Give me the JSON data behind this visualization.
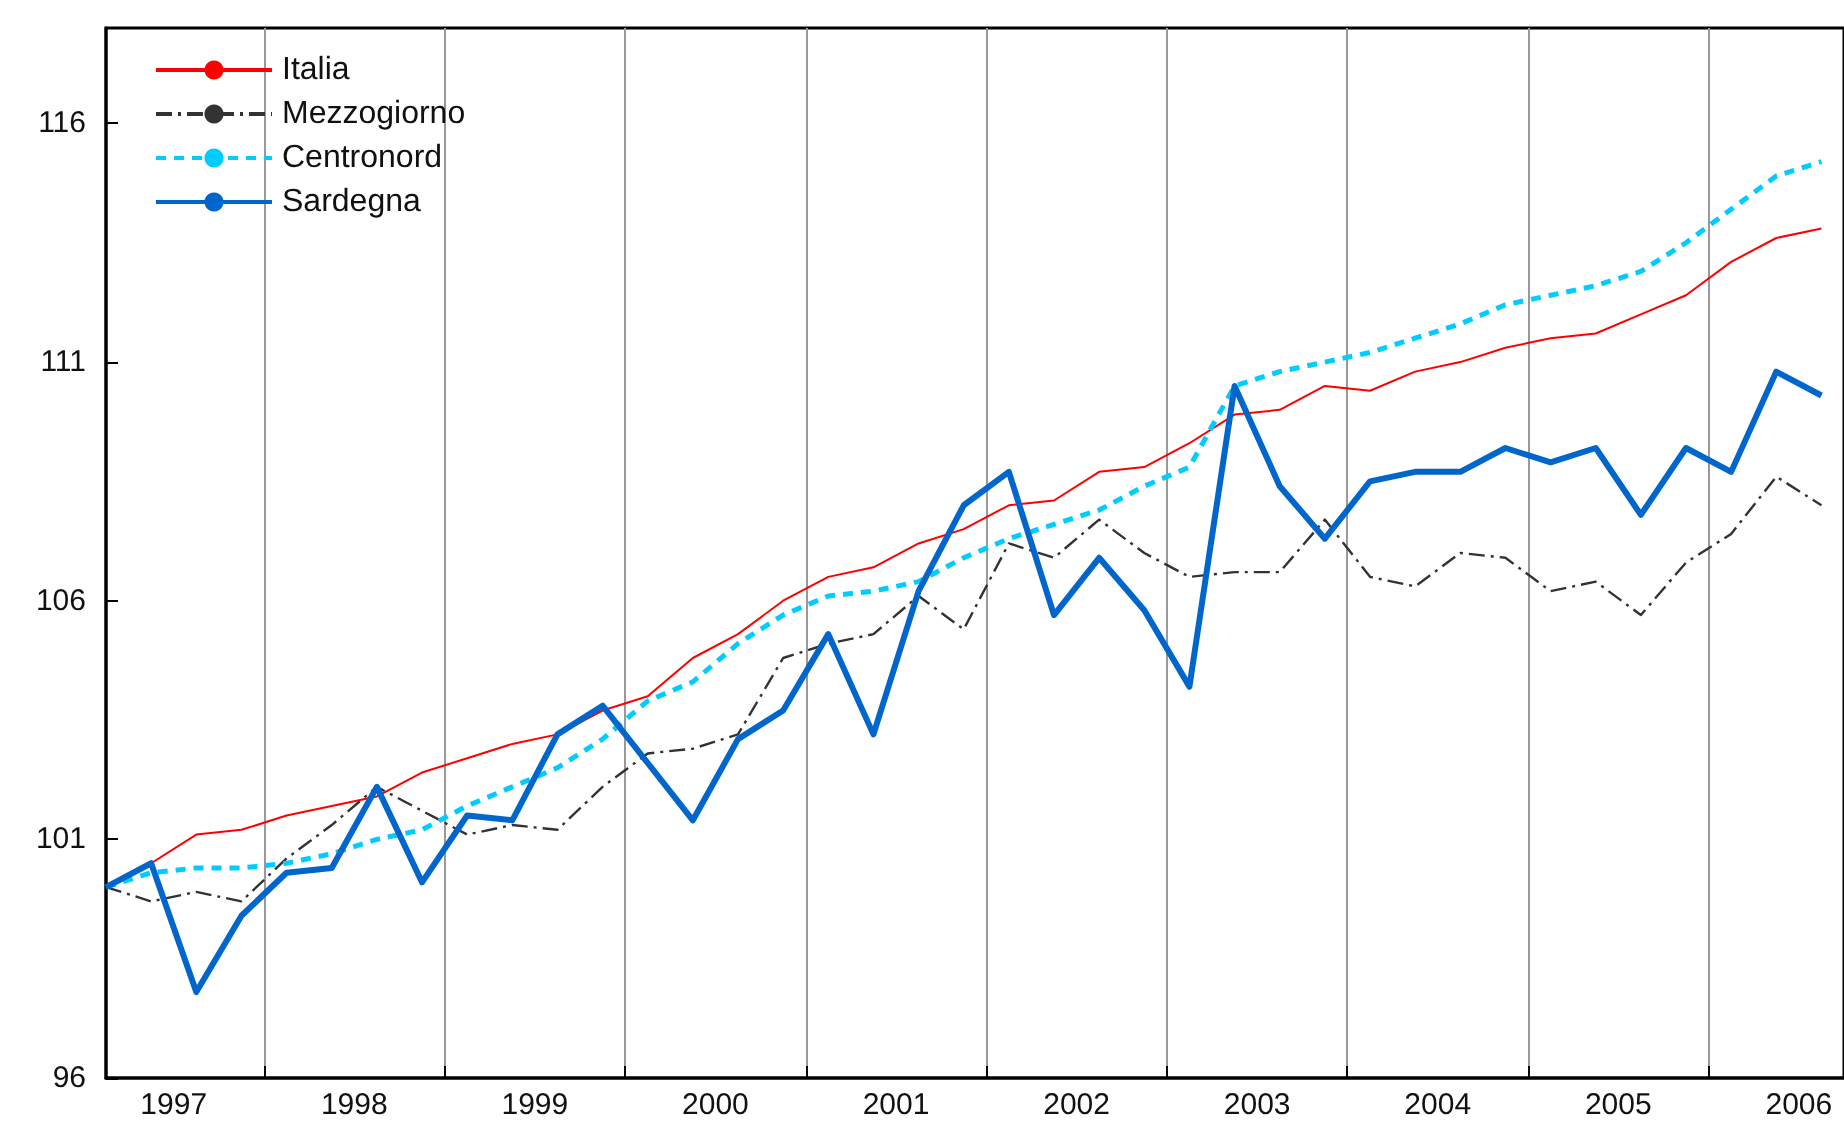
{
  "chart_data": {
    "type": "line",
    "x": [
      1997.125,
      1997.375,
      1997.625,
      1997.875,
      1998.125,
      1998.375,
      1998.625,
      1998.875,
      1999.125,
      1999.375,
      1999.625,
      1999.875,
      2000.125,
      2000.375,
      2000.625,
      2000.875,
      2001.125,
      2001.375,
      2001.625,
      2001.875,
      2002.125,
      2002.375,
      2002.625,
      2002.875,
      2003.125,
      2003.375,
      2003.625,
      2003.875,
      2004.125,
      2004.375,
      2004.625,
      2004.875,
      2005.125,
      2005.375,
      2005.625,
      2005.875,
      2006.125,
      2006.375,
      2006.625
    ],
    "series": [
      {
        "name": "Italia",
        "color": "#ff0000",
        "line_style": "solid",
        "values": [
          100.0,
          100.5,
          101.1,
          101.2,
          101.5,
          101.7,
          101.9,
          102.4,
          102.7,
          103.0,
          103.2,
          103.7,
          104.0,
          104.8,
          105.3,
          106.0,
          106.5,
          106.7,
          107.2,
          107.5,
          108.0,
          108.1,
          108.7,
          108.8,
          109.3,
          109.9,
          110.0,
          110.5,
          110.4,
          110.8,
          111.0,
          111.3,
          111.5,
          111.6,
          112.0,
          112.4,
          113.1,
          113.6,
          113.8
        ]
      },
      {
        "name": "Mezzogiorno",
        "color": "#333333",
        "line_style": "dashed",
        "values": [
          100.0,
          99.7,
          99.9,
          99.7,
          100.6,
          101.3,
          102.1,
          101.6,
          101.1,
          101.3,
          101.2,
          102.1,
          102.8,
          102.9,
          103.2,
          104.8,
          105.1,
          105.3,
          106.1,
          105.4,
          107.2,
          106.9,
          107.7,
          107.0,
          106.5,
          106.6,
          106.6,
          107.7,
          106.5,
          106.3,
          107.0,
          106.9,
          106.2,
          106.4,
          105.7,
          106.8,
          107.4,
          108.6,
          108.0
        ]
      },
      {
        "name": "Centronord",
        "color": "#00ccff",
        "line_style": "dotted",
        "values": [
          100.0,
          100.3,
          100.4,
          100.4,
          100.5,
          100.7,
          101.0,
          101.2,
          101.7,
          102.1,
          102.5,
          103.1,
          103.9,
          104.3,
          105.1,
          105.7,
          106.1,
          106.2,
          106.4,
          106.9,
          107.3,
          107.6,
          107.9,
          108.4,
          108.8,
          110.5,
          110.8,
          111.0,
          111.2,
          111.5,
          111.8,
          112.2,
          112.4,
          112.6,
          112.9,
          113.5,
          114.2,
          114.9,
          115.2
        ]
      },
      {
        "name": "Sardegna",
        "color": "#0066cc",
        "line_style": "solid",
        "values": [
          100.0,
          100.5,
          97.8,
          99.4,
          100.3,
          100.4,
          102.1,
          100.1,
          101.5,
          101.4,
          103.2,
          103.8,
          102.6,
          101.4,
          103.1,
          103.7,
          105.3,
          103.2,
          106.2,
          108.0,
          108.7,
          105.7,
          106.9,
          105.8,
          104.2,
          110.5,
          108.4,
          107.3,
          108.5,
          108.7,
          108.7,
          109.2,
          108.9,
          109.2,
          107.8,
          109.2,
          108.7,
          110.8,
          110.3
        ]
      }
    ],
    "xlim": [
      1997.125,
      2006.75
    ],
    "xticks": [
      {
        "value": 1997.5,
        "label": "1997"
      },
      {
        "value": 1998,
        "label": null
      },
      {
        "value": 1998.5,
        "label": "1998"
      },
      {
        "value": 1999,
        "label": null
      },
      {
        "value": 1999.5,
        "label": "1999"
      },
      {
        "value": 2000,
        "label": null
      },
      {
        "value": 2000.5,
        "label": "2000"
      },
      {
        "value": 2001,
        "label": null
      },
      {
        "value": 2001.5,
        "label": "2001"
      },
      {
        "value": 2002,
        "label": null
      },
      {
        "value": 2002.5,
        "label": "2002"
      },
      {
        "value": 2003,
        "label": null
      },
      {
        "value": 2003.5,
        "label": "2003"
      },
      {
        "value": 2004,
        "label": null
      },
      {
        "value": 2004.5,
        "label": "2004"
      },
      {
        "value": 2005,
        "label": null
      },
      {
        "value": 2005.5,
        "label": "2005"
      },
      {
        "value": 2006,
        "label": null
      },
      {
        "value": 2006.5,
        "label": "2006"
      }
    ],
    "ylim": [
      96,
      118
    ],
    "yticks": [
      96,
      101,
      106,
      111,
      116
    ],
    "grid": "x",
    "legend": "top left",
    "marker": "none"
  }
}
